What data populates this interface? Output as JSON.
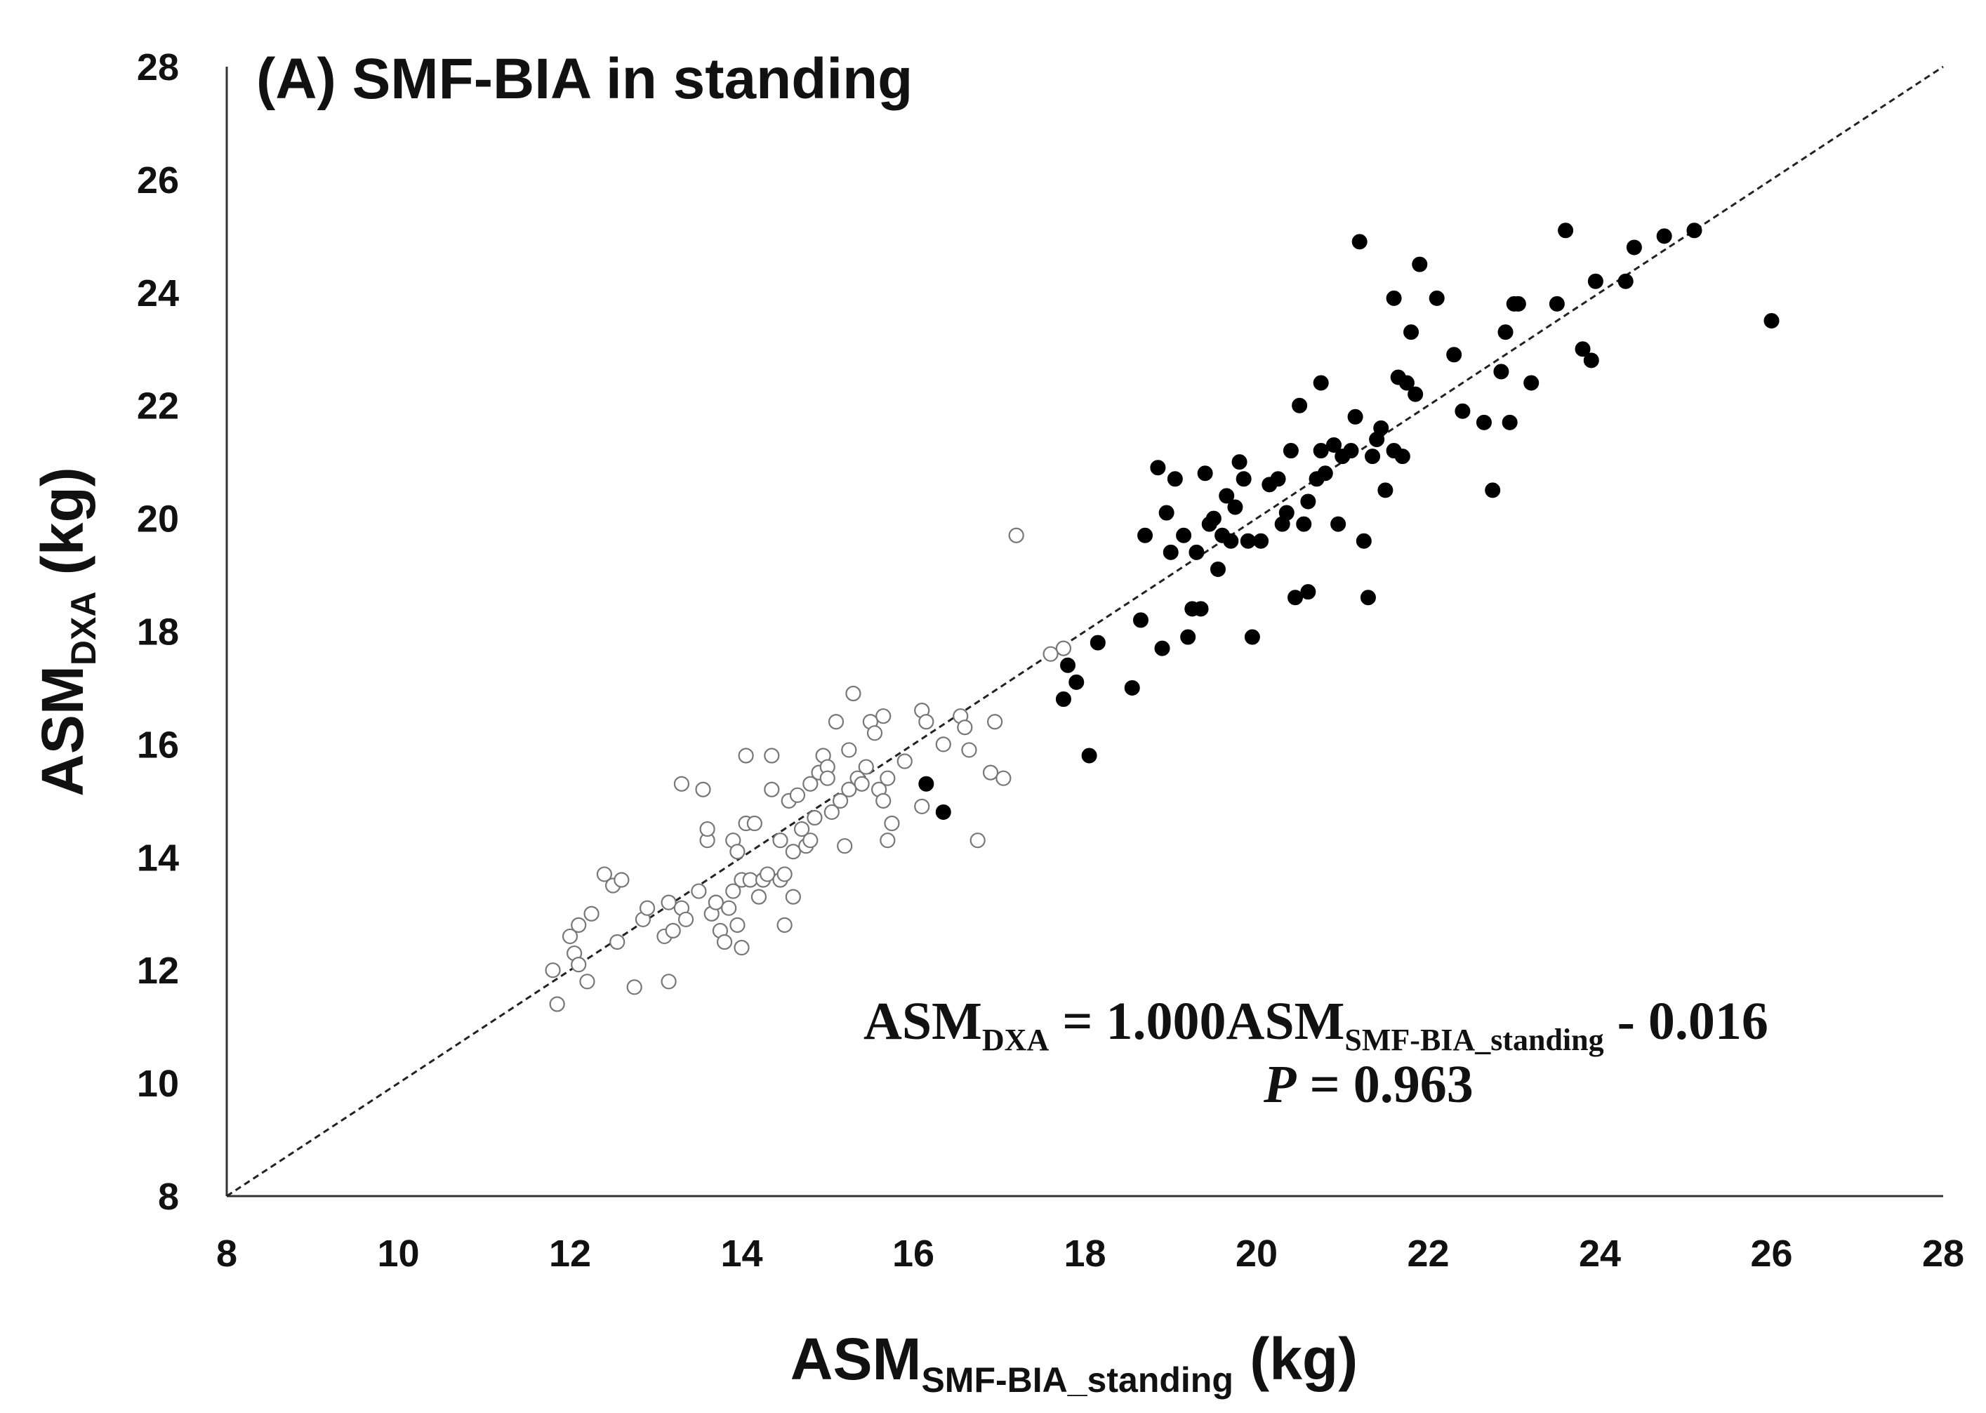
{
  "chart_data": {
    "type": "scatter",
    "title": "(A) SMF-BIA in standing",
    "xlabel": {
      "main": "ASM",
      "sub": "SMF-BIA_standing",
      "unit": " (kg)"
    },
    "ylabel": {
      "main": "ASM",
      "sub": "DXA",
      "unit": " (kg)"
    },
    "xlim": [
      8,
      28
    ],
    "ylim": [
      8,
      28
    ],
    "xticks": [
      "8",
      "10",
      "12",
      "14",
      "16",
      "18",
      "20",
      "22",
      "24",
      "26",
      "28"
    ],
    "yticks": [
      "8",
      "10",
      "12",
      "14",
      "16",
      "18",
      "20",
      "22",
      "24",
      "26",
      "28"
    ],
    "reference_line": {
      "style": "dashed",
      "from": [
        8,
        8
      ],
      "to": [
        28,
        28
      ]
    },
    "annotation": {
      "line1": {
        "lhs": "ASM",
        "lhs_sub": "DXA",
        "mid": " = 1.000ASM",
        "mid_sub": "SMF-BIA_standing",
        "rhs": " - 0.016"
      },
      "line2": {
        "p_label": "P",
        "p_value": " = 0.963"
      }
    },
    "series": [
      {
        "name": "open",
        "marker": "open-circle",
        "color": "#777777",
        "points": [
          [
            11.8,
            12.0
          ],
          [
            11.85,
            11.4
          ],
          [
            12.0,
            12.6
          ],
          [
            12.05,
            12.3
          ],
          [
            12.1,
            12.8
          ],
          [
            12.1,
            12.1
          ],
          [
            12.2,
            11.8
          ],
          [
            12.25,
            13.0
          ],
          [
            12.4,
            13.7
          ],
          [
            12.5,
            13.5
          ],
          [
            12.55,
            12.5
          ],
          [
            12.6,
            13.6
          ],
          [
            12.75,
            11.7
          ],
          [
            12.85,
            12.9
          ],
          [
            12.9,
            13.1
          ],
          [
            13.1,
            12.6
          ],
          [
            13.15,
            13.2
          ],
          [
            13.15,
            11.8
          ],
          [
            13.2,
            12.7
          ],
          [
            13.3,
            13.1
          ],
          [
            13.3,
            15.3
          ],
          [
            13.35,
            12.9
          ],
          [
            13.5,
            13.4
          ],
          [
            13.55,
            15.2
          ],
          [
            13.6,
            14.3
          ],
          [
            13.6,
            14.5
          ],
          [
            13.65,
            13.0
          ],
          [
            13.7,
            13.2
          ],
          [
            13.75,
            12.7
          ],
          [
            13.8,
            12.5
          ],
          [
            13.85,
            13.1
          ],
          [
            13.9,
            13.4
          ],
          [
            13.9,
            14.3
          ],
          [
            13.95,
            12.8
          ],
          [
            13.95,
            14.1
          ],
          [
            14.0,
            12.4
          ],
          [
            14.0,
            13.6
          ],
          [
            14.05,
            14.6
          ],
          [
            14.05,
            15.8
          ],
          [
            14.1,
            13.6
          ],
          [
            14.15,
            14.6
          ],
          [
            14.2,
            13.3
          ],
          [
            14.25,
            13.6
          ],
          [
            14.3,
            13.7
          ],
          [
            14.35,
            15.2
          ],
          [
            14.35,
            15.8
          ],
          [
            14.45,
            14.3
          ],
          [
            14.45,
            13.6
          ],
          [
            14.5,
            12.8
          ],
          [
            14.5,
            13.7
          ],
          [
            14.55,
            15.0
          ],
          [
            14.6,
            13.3
          ],
          [
            14.6,
            14.1
          ],
          [
            14.65,
            15.1
          ],
          [
            14.7,
            14.5
          ],
          [
            14.75,
            14.2
          ],
          [
            14.8,
            14.3
          ],
          [
            14.8,
            15.3
          ],
          [
            14.85,
            14.7
          ],
          [
            14.9,
            15.5
          ],
          [
            14.95,
            15.8
          ],
          [
            15.0,
            15.6
          ],
          [
            15.0,
            15.4
          ],
          [
            15.05,
            14.8
          ],
          [
            15.1,
            16.4
          ],
          [
            15.15,
            15.0
          ],
          [
            15.2,
            14.2
          ],
          [
            15.25,
            15.2
          ],
          [
            15.25,
            15.9
          ],
          [
            15.3,
            16.9
          ],
          [
            15.35,
            15.4
          ],
          [
            15.4,
            15.3
          ],
          [
            15.45,
            15.6
          ],
          [
            15.5,
            16.4
          ],
          [
            15.55,
            16.2
          ],
          [
            15.6,
            15.2
          ],
          [
            15.65,
            15.0
          ],
          [
            15.65,
            16.5
          ],
          [
            15.7,
            14.3
          ],
          [
            15.7,
            15.4
          ],
          [
            15.75,
            14.6
          ],
          [
            15.9,
            15.7
          ],
          [
            16.1,
            14.9
          ],
          [
            16.1,
            16.6
          ],
          [
            16.15,
            16.4
          ],
          [
            16.35,
            16.0
          ],
          [
            16.55,
            16.5
          ],
          [
            16.6,
            16.3
          ],
          [
            16.65,
            15.9
          ],
          [
            16.75,
            14.3
          ],
          [
            16.9,
            15.5
          ],
          [
            16.95,
            16.4
          ],
          [
            17.05,
            15.4
          ],
          [
            17.2,
            19.7
          ],
          [
            17.6,
            17.6
          ],
          [
            17.75,
            17.7
          ]
        ]
      },
      {
        "name": "filled",
        "marker": "filled-circle",
        "color": "#000000",
        "points": [
          [
            16.15,
            15.3
          ],
          [
            16.35,
            14.8
          ],
          [
            17.75,
            16.8
          ],
          [
            17.8,
            17.4
          ],
          [
            17.9,
            17.1
          ],
          [
            18.05,
            15.8
          ],
          [
            18.15,
            17.8
          ],
          [
            18.55,
            17.0
          ],
          [
            18.65,
            18.2
          ],
          [
            18.7,
            19.7
          ],
          [
            18.85,
            20.9
          ],
          [
            18.9,
            17.7
          ],
          [
            18.95,
            20.1
          ],
          [
            19.0,
            19.4
          ],
          [
            19.05,
            20.7
          ],
          [
            19.15,
            19.7
          ],
          [
            19.2,
            17.9
          ],
          [
            19.25,
            18.4
          ],
          [
            19.3,
            19.4
          ],
          [
            19.35,
            18.4
          ],
          [
            19.4,
            20.8
          ],
          [
            19.45,
            19.9
          ],
          [
            19.5,
            20.0
          ],
          [
            19.55,
            19.1
          ],
          [
            19.6,
            19.7
          ],
          [
            19.65,
            20.4
          ],
          [
            19.7,
            19.6
          ],
          [
            19.75,
            20.2
          ],
          [
            19.8,
            21.0
          ],
          [
            19.85,
            20.7
          ],
          [
            19.9,
            19.6
          ],
          [
            19.95,
            17.9
          ],
          [
            20.05,
            19.6
          ],
          [
            20.15,
            20.6
          ],
          [
            20.25,
            20.7
          ],
          [
            20.3,
            19.9
          ],
          [
            20.35,
            20.1
          ],
          [
            20.4,
            21.2
          ],
          [
            20.45,
            18.6
          ],
          [
            20.5,
            22.0
          ],
          [
            20.55,
            19.9
          ],
          [
            20.6,
            20.3
          ],
          [
            20.6,
            18.7
          ],
          [
            20.7,
            20.7
          ],
          [
            20.75,
            21.2
          ],
          [
            20.75,
            22.4
          ],
          [
            20.8,
            20.8
          ],
          [
            20.9,
            21.3
          ],
          [
            20.95,
            19.9
          ],
          [
            21.0,
            21.1
          ],
          [
            21.1,
            21.2
          ],
          [
            21.15,
            21.8
          ],
          [
            21.2,
            24.9
          ],
          [
            21.25,
            19.6
          ],
          [
            21.3,
            18.6
          ],
          [
            21.35,
            21.1
          ],
          [
            21.4,
            21.4
          ],
          [
            21.45,
            21.6
          ],
          [
            21.5,
            20.5
          ],
          [
            21.6,
            21.2
          ],
          [
            21.6,
            23.9
          ],
          [
            21.65,
            22.5
          ],
          [
            21.7,
            21.1
          ],
          [
            21.75,
            22.4
          ],
          [
            21.8,
            23.3
          ],
          [
            21.85,
            22.2
          ],
          [
            21.9,
            24.5
          ],
          [
            22.1,
            23.9
          ],
          [
            22.3,
            22.9
          ],
          [
            22.4,
            21.9
          ],
          [
            22.65,
            21.7
          ],
          [
            22.75,
            20.5
          ],
          [
            22.85,
            22.6
          ],
          [
            22.9,
            23.3
          ],
          [
            22.95,
            21.7
          ],
          [
            23.0,
            23.8
          ],
          [
            23.05,
            23.8
          ],
          [
            23.2,
            22.4
          ],
          [
            23.5,
            23.8
          ],
          [
            23.6,
            25.1
          ],
          [
            23.8,
            23.0
          ],
          [
            23.9,
            22.8
          ],
          [
            23.95,
            24.2
          ],
          [
            24.3,
            24.2
          ],
          [
            24.4,
            24.8
          ],
          [
            24.75,
            25.0
          ],
          [
            25.1,
            25.1
          ],
          [
            26.0,
            23.5
          ]
        ]
      }
    ]
  }
}
